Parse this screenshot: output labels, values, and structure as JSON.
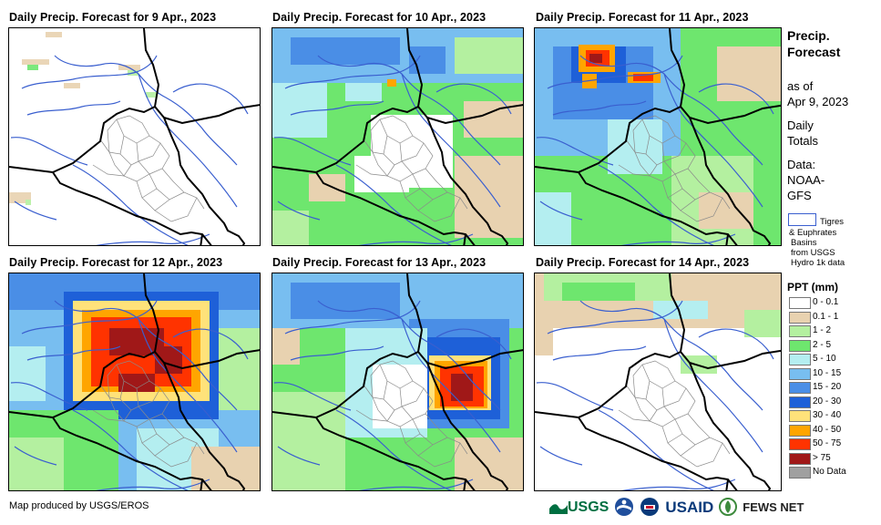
{
  "panels": [
    {
      "title": "Daily Precip. Forecast for 9 Apr., 2023"
    },
    {
      "title": "Daily Precip. Forecast for 10 Apr., 2023"
    },
    {
      "title": "Daily Precip. Forecast for 11 Apr., 2023"
    },
    {
      "title": "Daily Precip. Forecast for 12 Apr., 2023"
    },
    {
      "title": "Daily Precip. Forecast for 13 Apr., 2023"
    },
    {
      "title": "Daily Precip. Forecast for 14 Apr., 2023"
    }
  ],
  "sidebar": {
    "title_line1": "Precip.",
    "title_line2": "Forecast",
    "asof_line1": "as of",
    "asof_line2": "Apr 9, 2023",
    "daily_line1": "Daily",
    "daily_line2": "Totals",
    "data_line1": "Data:",
    "data_line2": "NOAA-",
    "data_line3": "GFS",
    "basin_line1": "Tigres",
    "basin_line2": "& Euphrates",
    "basin_line3": "Basins",
    "basin_line4": "from USGS",
    "basin_line5": "Hydro 1k data",
    "legend_title": "PPT (mm)"
  },
  "legend": [
    {
      "label": "0 - 0.1",
      "color": "#ffffff"
    },
    {
      "label": "0.1 - 1",
      "color": "#e8d2b0"
    },
    {
      "label": "1 - 2",
      "color": "#b4f0a0"
    },
    {
      "label": "2 - 5",
      "color": "#6ee66e"
    },
    {
      "label": "5 - 10",
      "color": "#b4eef0"
    },
    {
      "label": "10 - 15",
      "color": "#78bef0"
    },
    {
      "label": "15 - 20",
      "color": "#4a8ee6"
    },
    {
      "label": "20 - 30",
      "color": "#1e60d8"
    },
    {
      "label": "30 - 40",
      "color": "#ffe27a"
    },
    {
      "label": "40 - 50",
      "color": "#ffa500"
    },
    {
      "label": "50 - 75",
      "color": "#ff3300"
    },
    {
      "label": "> 75",
      "color": "#a01818"
    },
    {
      "label": "No Data",
      "color": "#a0a0a0"
    }
  ],
  "footer": {
    "credit": "Map produced by USGS/EROS",
    "usgs": "USGS",
    "usaid": "USAID",
    "fewsnet": "FEWS NET"
  }
}
